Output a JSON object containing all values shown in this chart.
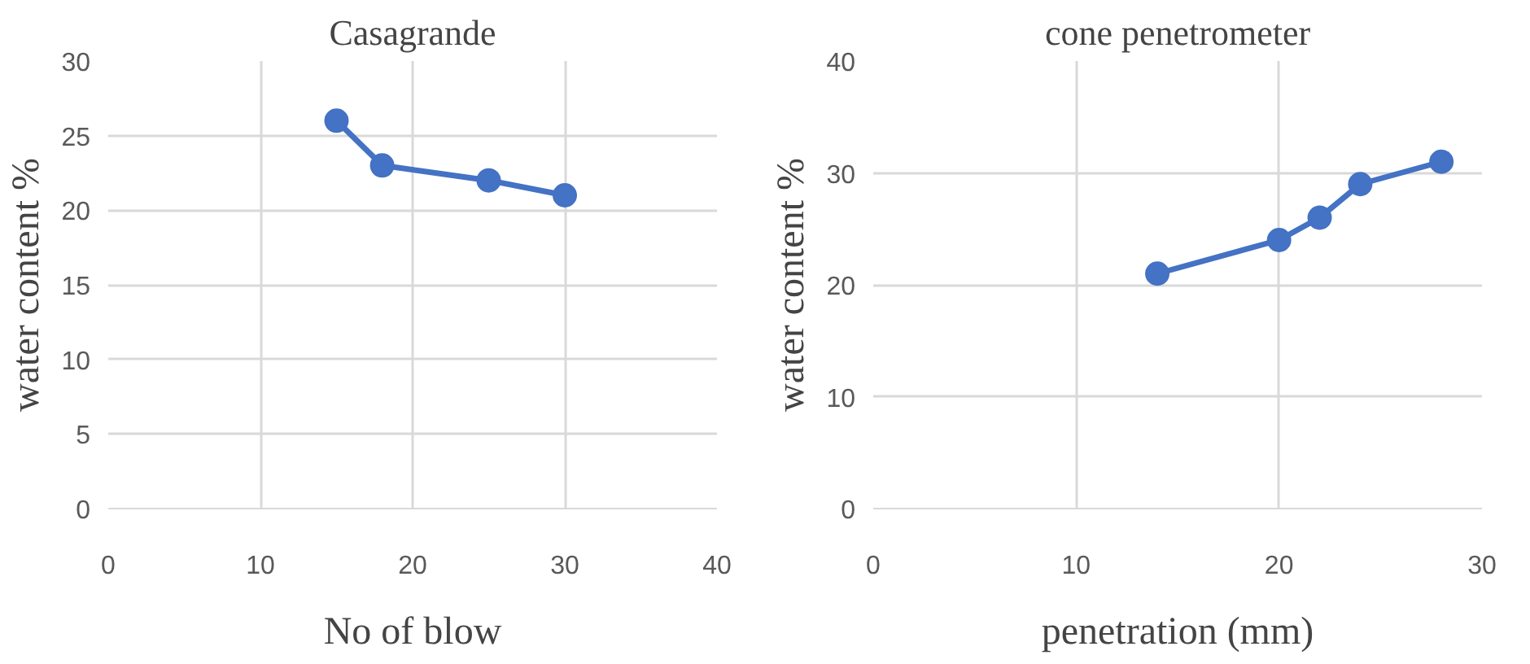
{
  "chart_data": [
    {
      "type": "line",
      "title": "Casagrande",
      "xlabel": "No of blow",
      "ylabel": "water content %",
      "x": [
        15,
        18,
        25,
        30
      ],
      "series": [
        {
          "color": "#4472c4",
          "values": [
            26,
            23,
            22,
            21
          ]
        }
      ],
      "xlim": [
        0,
        40
      ],
      "xticks": [
        0,
        10,
        20,
        30,
        40
      ],
      "ylim": [
        0,
        30
      ],
      "yticks": [
        0,
        5,
        10,
        15,
        20,
        25,
        30
      ],
      "grid": true,
      "marker": "circle",
      "line_style": "solid"
    },
    {
      "type": "line",
      "title": "cone penetrometer",
      "xlabel": "penetration (mm)",
      "ylabel": "water content %",
      "x": [
        14,
        20,
        22,
        24,
        28
      ],
      "series": [
        {
          "color": "#4472c4",
          "values": [
            21,
            24,
            26,
            29,
            31
          ]
        }
      ],
      "xlim": [
        0,
        30
      ],
      "xticks": [
        0,
        10,
        20,
        30
      ],
      "ylim": [
        0,
        40
      ],
      "yticks": [
        0,
        10,
        20,
        30,
        40
      ],
      "grid": true,
      "marker": "circle",
      "line_style": "solid"
    }
  ]
}
